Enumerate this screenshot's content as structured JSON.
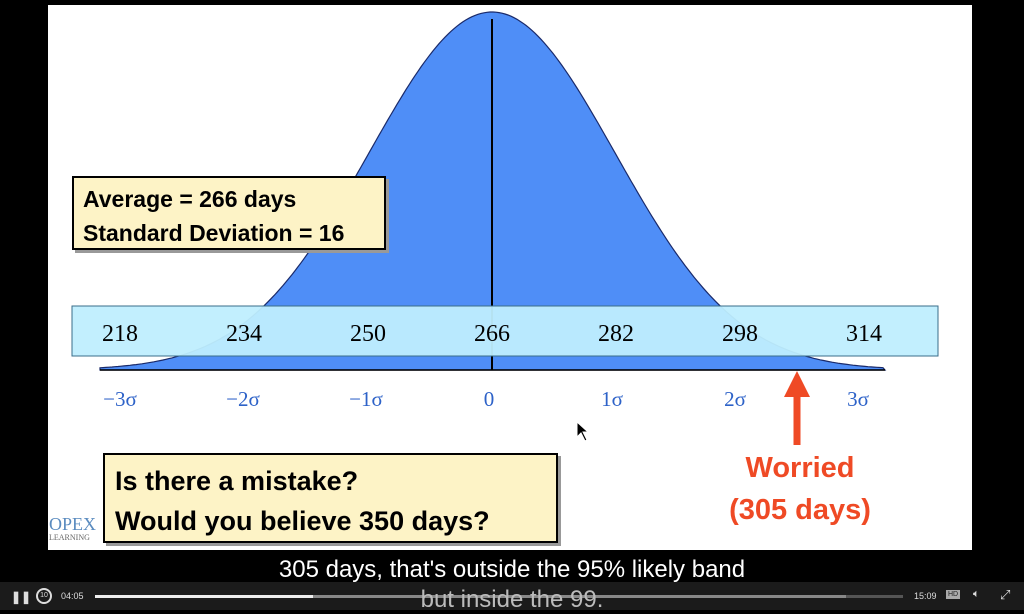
{
  "slide": {
    "stats_box": {
      "average": "Average = 266 days",
      "std_dev": "Standard Deviation = 16"
    },
    "question_box": {
      "line1": "Is there a mistake?",
      "line2": "Would you believe 350 days?"
    },
    "worried": {
      "line1": "Worried",
      "line2": "(305 days)"
    },
    "logo": {
      "top": "OPEX",
      "bottom": "LEARNING"
    },
    "chart_data": {
      "type": "area",
      "mean": 266,
      "std_dev": 16,
      "values": [
        "218",
        "234",
        "250",
        "266",
        "282",
        "298",
        "314"
      ],
      "sigma_labels": [
        "−3σ",
        "−2σ",
        "−1σ",
        "0",
        "1σ",
        "2σ",
        "3σ"
      ],
      "marker_value": 305,
      "colors": {
        "curve": "#4f8ef7",
        "band": "#bfeefe",
        "marker": "#ef4a25"
      }
    }
  },
  "captions": {
    "line1": "305 days, that's outside the 95% likely band",
    "line2": "but inside the 99."
  },
  "player": {
    "current_time": "04:05",
    "duration": "15:09",
    "progress": 0.27,
    "buffered": 0.93,
    "hd_label": "HD",
    "icons": [
      "pause-icon",
      "replay-10-icon",
      "hd-icon",
      "volume-icon",
      "fullscreen-icon"
    ]
  }
}
